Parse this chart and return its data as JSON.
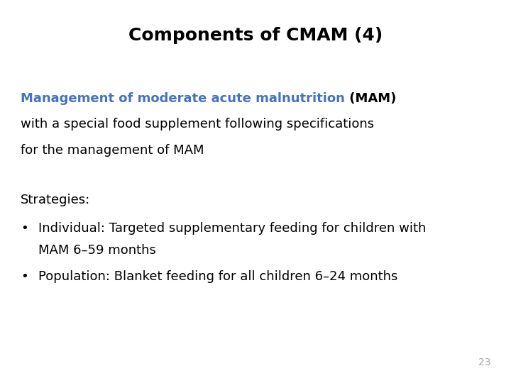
{
  "title": "Components of CMAM (4)",
  "title_fontsize": 18,
  "title_color": "#000000",
  "background_color": "#ffffff",
  "blue_text": "Management of moderate acute malnutrition",
  "blue_color": "#4472C4",
  "black_bold_text": " (MAM)",
  "line2": "with a special food supplement following specifications",
  "line3": "for the management of MAM",
  "strategies_label": "Strategies:",
  "bullet1_line1": "Individual: Targeted supplementary feeding for children with",
  "bullet1_line2": "MAM 6–59 months",
  "bullet2": "Population: Blanket feeding for all children 6–24 months",
  "body_fontsize": 13,
  "strategies_fontsize": 13,
  "page_number": "23",
  "page_number_color": "#aaaaaa",
  "page_number_fontsize": 10
}
